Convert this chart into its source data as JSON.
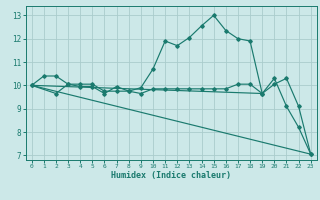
{
  "bg_color": "#cce8e8",
  "grid_color": "#aacccc",
  "line_color": "#1a7a6e",
  "xlabel": "Humidex (Indice chaleur)",
  "xlim": [
    -0.5,
    23.5
  ],
  "ylim": [
    6.8,
    13.4
  ],
  "xticks": [
    0,
    1,
    2,
    3,
    4,
    5,
    6,
    7,
    8,
    9,
    10,
    11,
    12,
    13,
    14,
    15,
    16,
    17,
    18,
    19,
    20,
    21,
    22,
    23
  ],
  "yticks": [
    7,
    8,
    9,
    10,
    11,
    12,
    13
  ],
  "line1_x": [
    0,
    1,
    2,
    3,
    4,
    5,
    6,
    7,
    8,
    9,
    10,
    11,
    12,
    13,
    14,
    15,
    16,
    17,
    18,
    19,
    20,
    21,
    22,
    23
  ],
  "line1_y": [
    10.0,
    10.4,
    10.4,
    10.05,
    10.05,
    10.05,
    9.75,
    9.75,
    9.75,
    9.9,
    10.7,
    11.9,
    11.7,
    12.05,
    12.55,
    13.0,
    12.35,
    12.0,
    11.9,
    9.65,
    10.3,
    9.1,
    8.2,
    7.05
  ],
  "line2_x": [
    0,
    2,
    3,
    4,
    5,
    6,
    7,
    8,
    9,
    10,
    11,
    12,
    13,
    14,
    15,
    16,
    17,
    18,
    19,
    20,
    21,
    22,
    23
  ],
  "line2_y": [
    10.0,
    9.65,
    10.05,
    9.95,
    9.95,
    9.65,
    9.95,
    9.75,
    9.65,
    9.85,
    9.85,
    9.85,
    9.85,
    9.85,
    9.85,
    9.85,
    10.05,
    10.05,
    9.65,
    10.05,
    10.3,
    9.1,
    7.05
  ],
  "line3_x": [
    0,
    19
  ],
  "line3_y": [
    10.0,
    9.65
  ],
  "line4_x": [
    0,
    23
  ],
  "line4_y": [
    10.0,
    7.05
  ]
}
